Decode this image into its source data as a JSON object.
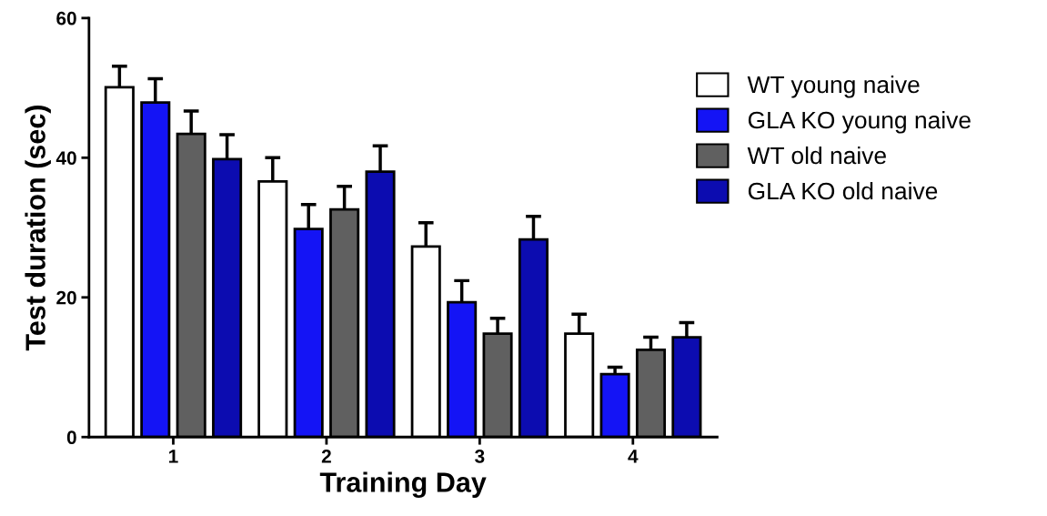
{
  "chart_data": {
    "type": "bar",
    "xlabel": "Training Day",
    "ylabel": "Test duration (sec)",
    "categories": [
      "1",
      "2",
      "3",
      "4"
    ],
    "series": [
      {
        "name": "WT young naive",
        "color": "#ffffff",
        "values": [
          50.1,
          36.6,
          27.3,
          14.8
        ],
        "errors": [
          [
            50.1,
            53.1
          ],
          [
            36.6,
            40.0
          ],
          [
            27.3,
            30.7
          ],
          [
            14.8,
            17.6
          ]
        ]
      },
      {
        "name": "GLA KO young naive",
        "color": "#1414f5",
        "values": [
          47.9,
          29.8,
          19.3,
          9.0
        ],
        "errors": [
          [
            47.9,
            51.3
          ],
          [
            29.8,
            33.3
          ],
          [
            19.3,
            22.4
          ],
          [
            9.0,
            10.0
          ]
        ]
      },
      {
        "name": "WT old naive",
        "color": "#606060",
        "values": [
          43.4,
          32.6,
          14.8,
          12.5
        ],
        "errors": [
          [
            43.4,
            46.7
          ],
          [
            32.6,
            35.9
          ],
          [
            14.8,
            17.0
          ],
          [
            12.5,
            14.3
          ]
        ]
      },
      {
        "name": "GLA KO old naive",
        "color": "#0c0cb0",
        "values": [
          39.8,
          38.0,
          28.3,
          14.3
        ],
        "errors": [
          [
            39.8,
            43.3
          ],
          [
            38.0,
            41.7
          ],
          [
            28.3,
            31.6
          ],
          [
            14.3,
            16.4
          ]
        ]
      }
    ],
    "ylim": [
      0,
      60
    ],
    "yticks": [
      0,
      20,
      40,
      60
    ],
    "grid": false,
    "legend": "right"
  }
}
